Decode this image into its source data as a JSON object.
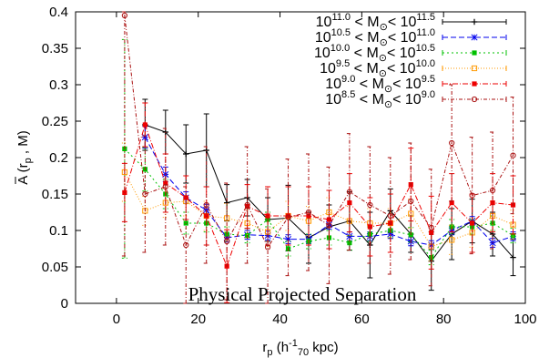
{
  "chart_data": {
    "type": "line",
    "xlabel": {
      "main": "r",
      "sub": "p",
      "rest": " (h",
      "sup": "-1",
      "sub2": "70",
      "end": " kpc)"
    },
    "ylabel": {
      "main": "A (r",
      "sub": "p",
      "end": " , M)"
    },
    "xlim": [
      -10,
      100
    ],
    "ylim": [
      0,
      0.4
    ],
    "xticks": [
      0,
      20,
      40,
      60,
      80,
      100
    ],
    "yticks": [
      0,
      0.05,
      0.1,
      0.15,
      0.2,
      0.25,
      0.3,
      0.35,
      0.4
    ],
    "xtick_labels": [
      "0",
      "20",
      "40",
      "60",
      "80",
      "100"
    ],
    "ytick_labels": [
      "0",
      "0.05",
      "0.1",
      "0.15",
      "0.2",
      "0.25",
      "0.3",
      "0.35",
      "0.4"
    ],
    "annotation": "Physical Projected Separation",
    "grid": false,
    "legend_position": "top-right",
    "series": [
      {
        "legend": {
          "a": "10",
          "asup": "11.0",
          "mid": " < M",
          "msub": "⊙",
          "lt": "< 10",
          "bsup": "11.5"
        },
        "color": "#000000",
        "dash": "",
        "marker": "plus",
        "x": [
          7,
          12,
          17,
          22,
          27,
          32,
          37,
          42,
          47,
          52,
          57,
          62,
          67,
          72,
          77,
          82,
          87,
          92,
          97
        ],
        "y": [
          0.245,
          0.235,
          0.205,
          0.21,
          0.138,
          0.145,
          0.115,
          0.117,
          0.09,
          0.105,
          0.113,
          0.08,
          0.127,
          0.095,
          0.058,
          0.095,
          0.113,
          0.095,
          0.063
        ],
        "err": [
          0.035,
          0.03,
          0.04,
          0.05,
          0.025,
          0.025,
          0.03,
          0.045,
          0.035,
          0.03,
          0.04,
          0.045,
          0.03,
          0.025,
          0.04,
          0.035,
          0.03,
          0.03,
          0.025
        ]
      },
      {
        "legend": {
          "a": "10",
          "asup": "10.5",
          "mid": " < M",
          "msub": "⊙",
          "lt": "< 10",
          "bsup": "11.0"
        },
        "color": "#0000ee",
        "dash": "6,3",
        "marker": "x",
        "x": [
          7,
          12,
          17,
          22,
          27,
          32,
          37,
          42,
          47,
          52,
          57,
          62,
          67,
          72,
          77,
          82,
          87,
          92,
          97
        ],
        "y": [
          0.228,
          0.177,
          0.145,
          0.128,
          0.09,
          0.094,
          0.093,
          0.088,
          0.088,
          0.108,
          0.092,
          0.092,
          0.095,
          0.085,
          0.08,
          0.1,
          0.113,
          0.083,
          0.092
        ],
        "err": [
          0.015,
          0.01,
          0.008,
          0.008,
          0.006,
          0.006,
          0.006,
          0.006,
          0.006,
          0.006,
          0.006,
          0.006,
          0.006,
          0.006,
          0.006,
          0.006,
          0.006,
          0.006,
          0.006
        ]
      },
      {
        "legend": {
          "a": "10",
          "asup": "10.0",
          "mid": " < M",
          "msub": "⊙",
          "lt": "< 10",
          "bsup": "10.5"
        },
        "color": "#00c000",
        "dash": "2,3",
        "marker": "square-filled",
        "x": [
          2,
          7,
          12,
          17,
          22,
          27,
          32,
          37,
          42,
          47,
          52,
          57,
          62,
          67,
          72,
          77,
          82,
          87,
          92,
          97
        ],
        "y": [
          0.212,
          0.184,
          0.15,
          0.11,
          0.11,
          0.095,
          0.093,
          0.115,
          0.075,
          0.085,
          0.09,
          0.083,
          0.095,
          0.1,
          0.094,
          0.063,
          0.105,
          0.105,
          0.11,
          0.093
        ],
        "err": [
          0.15,
          0.03,
          0.02,
          0.015,
          0.012,
          0.01,
          0.01,
          0.01,
          0.01,
          0.01,
          0.01,
          0.01,
          0.01,
          0.01,
          0.01,
          0.01,
          0.01,
          0.01,
          0.01,
          0.01
        ]
      },
      {
        "legend": {
          "a": "10",
          "asup": "9.5",
          "mid": " < M",
          "msub": "⊙",
          "lt": "< 10",
          "bsup": "10.0"
        },
        "color": "#ff9900",
        "dash": "1,2",
        "marker": "square-open",
        "x": [
          2,
          7,
          12,
          17,
          22,
          27,
          32,
          37,
          42,
          47,
          52,
          57,
          62,
          67,
          72,
          77,
          82,
          87,
          92,
          97
        ],
        "y": [
          0.18,
          0.127,
          0.138,
          0.14,
          0.12,
          0.117,
          0.11,
          0.098,
          0.12,
          0.113,
          0.125,
          0.113,
          0.11,
          0.11,
          0.123,
          0.078,
          0.087,
          0.097,
          0.12,
          0.108
        ],
        "err": [
          0.04,
          0.02,
          0.02,
          0.02,
          0.02,
          0.02,
          0.02,
          0.02,
          0.02,
          0.02,
          0.02,
          0.02,
          0.02,
          0.02,
          0.02,
          0.02,
          0.02,
          0.02,
          0.02,
          0.02
        ]
      },
      {
        "legend": {
          "a": "10",
          "asup": "9.0",
          "mid": " < M",
          "msub": "⊙",
          "lt": "< 10",
          "bsup": "9.5"
        },
        "color": "#ee0000",
        "dash": "6,2,1,2",
        "marker": "square-filled",
        "x": [
          2,
          7,
          12,
          17,
          22,
          27,
          32,
          37,
          42,
          47,
          52,
          57,
          62,
          67,
          72,
          77,
          82,
          87,
          92,
          97
        ],
        "y": [
          0.152,
          0.245,
          0.165,
          0.145,
          0.12,
          0.051,
          0.133,
          0.12,
          0.12,
          0.12,
          0.115,
          0.138,
          0.105,
          0.11,
          0.163,
          0.097,
          0.138,
          0.11,
          0.138,
          0.135
        ],
        "err": [
          0.04,
          0.03,
          0.04,
          0.03,
          0.04,
          0.05,
          0.03,
          0.04,
          0.04,
          0.04,
          0.04,
          0.04,
          0.04,
          0.04,
          0.05,
          0.05,
          0.04,
          0.04,
          0.04,
          0.04
        ]
      },
      {
        "legend": {
          "a": "10",
          "asup": "8.5",
          "mid": " < M",
          "msub": "⊙",
          "lt": "< 10",
          "bsup": "9.0"
        },
        "color": "#aa1111",
        "dash": "4,2,1,2",
        "marker": "circle",
        "x": [
          2,
          7,
          12,
          17,
          22,
          27,
          32,
          37,
          42,
          47,
          52,
          57,
          62,
          67,
          72,
          77,
          82,
          87,
          92,
          97
        ],
        "y": [
          0.395,
          0.15,
          0.16,
          0.08,
          0.135,
          0.085,
          0.135,
          0.077,
          0.118,
          0.125,
          0.107,
          0.153,
          0.135,
          0.12,
          0.14,
          0.104,
          0.22,
          0.148,
          0.155,
          0.203
        ],
        "err": [
          0.33,
          0.08,
          0.08,
          0.08,
          0.08,
          0.08,
          0.08,
          0.08,
          0.08,
          0.08,
          0.08,
          0.08,
          0.08,
          0.08,
          0.08,
          0.08,
          0.08,
          0.08,
          0.08,
          0.08
        ]
      }
    ]
  }
}
